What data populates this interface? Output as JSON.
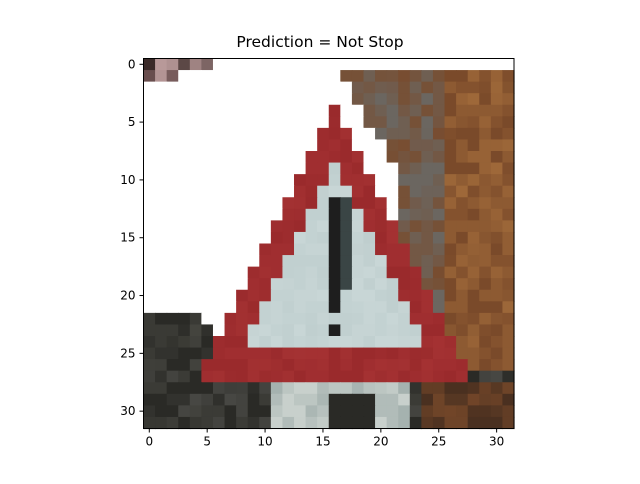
{
  "title": "Prediction = Not Stop",
  "image": {
    "description_name": "pixelated-warning-triangle-sign",
    "grid_size": 32
  },
  "x_ticks": [
    "0",
    "5",
    "10",
    "15",
    "20",
    "25",
    "30"
  ],
  "y_ticks": [
    "0",
    "5",
    "10",
    "15",
    "20",
    "25",
    "30"
  ],
  "colors": {
    "sign_red": "#9a2a2c",
    "sign_face": "#c8d6d6",
    "exclamation": "#1e1e1e",
    "background_white": "#ffffff",
    "foliage_brown": "#7a4a2a",
    "rock_gray": "#6b6660",
    "dark_ground": "#2a2a26"
  }
}
